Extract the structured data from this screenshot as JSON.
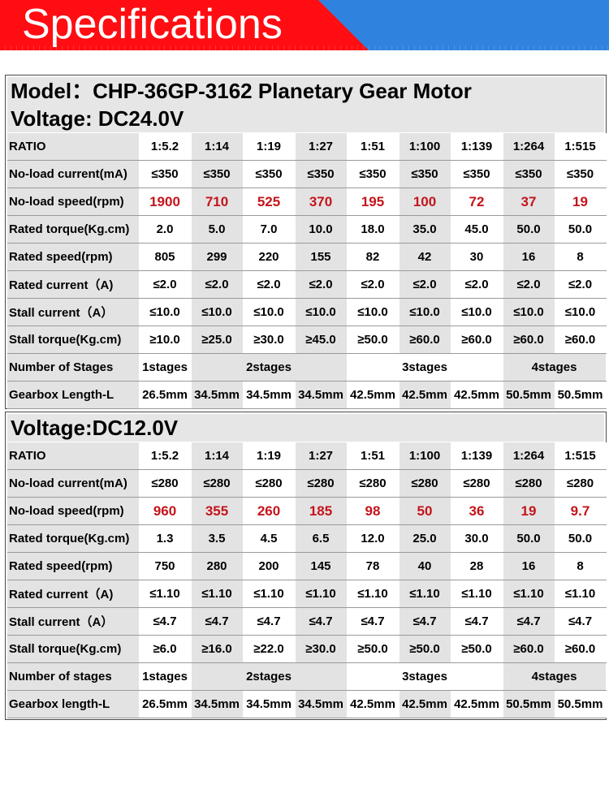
{
  "banner": {
    "title": "Specifications",
    "colors": {
      "left": "#ff0d12",
      "right": "#2f83df"
    }
  },
  "spec1": {
    "model_line": "Model：CHP-36GP-3162  Planetary Gear Motor",
    "voltage_line": "Voltage: DC24.0V",
    "rows": [
      {
        "label": "RATIO",
        "values": [
          "1:5.2",
          "1:14",
          "1:19",
          "1:27",
          "1:51",
          "1:100",
          "1:139",
          "1:264",
          "1:515"
        ]
      },
      {
        "label": "No-load current(mA)",
        "values": [
          "≤350",
          "≤350",
          "≤350",
          "≤350",
          "≤350",
          "≤350",
          "≤350",
          "≤350",
          "≤350"
        ]
      },
      {
        "label": "No-load speed(rpm)",
        "values": [
          "1900",
          "710",
          "525",
          "370",
          "195",
          "100",
          "72",
          "37",
          "19"
        ]
      },
      {
        "label": "Rated torque(Kg.cm)",
        "values": [
          "2.0",
          "5.0",
          "7.0",
          "10.0",
          "18.0",
          "35.0",
          "45.0",
          "50.0",
          "50.0"
        ]
      },
      {
        "label": "Rated speed(rpm)",
        "values": [
          "805",
          "299",
          "220",
          "155",
          "82",
          "42",
          "30",
          "16",
          "8"
        ]
      },
      {
        "label": "Rated current（A)",
        "values": [
          "≤2.0",
          "≤2.0",
          "≤2.0",
          "≤2.0",
          "≤2.0",
          "≤2.0",
          "≤2.0",
          "≤2.0",
          "≤2.0"
        ]
      },
      {
        "label": "Stall current（A）",
        "values": [
          "≤10.0",
          "≤10.0",
          "≤10.0",
          "≤10.0",
          "≤10.0",
          "≤10.0",
          "≤10.0",
          "≤10.0",
          "≤10.0"
        ]
      },
      {
        "label": "Stall torque(Kg.cm)",
        "values": [
          "≥10.0",
          "≥25.0",
          "≥30.0",
          "≥45.0",
          "≥50.0",
          "≥60.0",
          "≥60.0",
          "≥60.0",
          "≥60.0"
        ]
      }
    ],
    "stages": {
      "label": "Number of Stages",
      "s1": "1stages",
      "s2": "2stages",
      "s3": "3stages",
      "s4": "4stages"
    },
    "length": {
      "label": "Gearbox Length-L",
      "values": [
        "26.5mm",
        "34.5mm",
        "34.5mm",
        "34.5mm",
        "42.5mm",
        "42.5mm",
        "42.5mm",
        "50.5mm",
        "50.5mm"
      ]
    }
  },
  "spec2": {
    "voltage_line": "Voltage:DC12.0V",
    "rows": [
      {
        "label": "RATIO",
        "values": [
          "1:5.2",
          "1:14",
          "1:19",
          "1:27",
          "1:51",
          "1:100",
          "1:139",
          "1:264",
          "1:515"
        ]
      },
      {
        "label": "No-load current(mA)",
        "values": [
          "≤280",
          "≤280",
          "≤280",
          "≤280",
          "≤280",
          "≤280",
          "≤280",
          "≤280",
          "≤280"
        ]
      },
      {
        "label": "No-load speed(rpm)",
        "values": [
          "960",
          "355",
          "260",
          "185",
          "98",
          "50",
          "36",
          "19",
          "9.7"
        ]
      },
      {
        "label": "Rated torque(Kg.cm)",
        "values": [
          "1.3",
          "3.5",
          "4.5",
          "6.5",
          "12.0",
          "25.0",
          "30.0",
          "50.0",
          "50.0"
        ]
      },
      {
        "label": "Rated speed(rpm)",
        "values": [
          "750",
          "280",
          "200",
          "145",
          "78",
          "40",
          "28",
          "16",
          "8"
        ]
      },
      {
        "label": "Rated current（A)",
        "values": [
          "≤1.10",
          "≤1.10",
          "≤1.10",
          "≤1.10",
          "≤1.10",
          "≤1.10",
          "≤1.10",
          "≤1.10",
          "≤1.10"
        ]
      },
      {
        "label": "Stall current（A）",
        "values": [
          "≤4.7",
          "≤4.7",
          "≤4.7",
          "≤4.7",
          "≤4.7",
          "≤4.7",
          "≤4.7",
          "≤4.7",
          "≤4.7"
        ]
      },
      {
        "label": "Stall torque(Kg.cm)",
        "values": [
          "≥6.0",
          "≥16.0",
          "≥22.0",
          "≥30.0",
          "≥50.0",
          "≥50.0",
          "≥50.0",
          "≥60.0",
          "≥60.0"
        ]
      }
    ],
    "stages": {
      "label": "Number of stages",
      "s1": "1stages",
      "s2": "2stages",
      "s3": "3stages",
      "s4": "4stages"
    },
    "length": {
      "label": "Gearbox length-L",
      "values": [
        "26.5mm",
        "34.5mm",
        "34.5mm",
        "34.5mm",
        "42.5mm",
        "42.5mm",
        "42.5mm",
        "50.5mm",
        "50.5mm"
      ]
    }
  }
}
